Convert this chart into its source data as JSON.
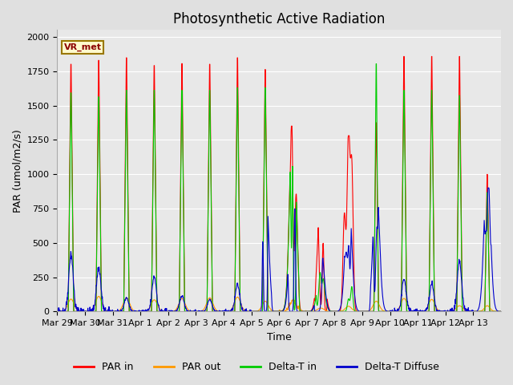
{
  "title": "Photosynthetic Active Radiation",
  "ylabel": "PAR (umol/m2/s)",
  "xlabel": "Time",
  "annotation": "VR_met",
  "legend": [
    "PAR in",
    "PAR out",
    "Delta-T in",
    "Delta-T Diffuse"
  ],
  "colors": [
    "#ff0000",
    "#ff9900",
    "#00cc00",
    "#0000cc"
  ],
  "ylim": [
    0,
    2050
  ],
  "background_color": "#e0e0e0",
  "plot_background": "#e8e8e8",
  "n_days": 16,
  "x_tick_labels": [
    "Mar 29",
    "Mar 30",
    "Mar 31",
    "Apr 1",
    "Apr 2",
    "Apr 3",
    "Apr 4",
    "Apr 5",
    "Apr 6",
    "Apr 7",
    "Apr 8",
    "Apr 9",
    "Apr 10",
    "Apr 11",
    "Apr 12",
    "Apr 13"
  ],
  "x_tick_positions": [
    0,
    1,
    2,
    3,
    4,
    5,
    6,
    7,
    8,
    9,
    10,
    11,
    12,
    13,
    14,
    15
  ],
  "title_fontsize": 12,
  "label_fontsize": 9,
  "tick_fontsize": 8,
  "grid_color": "#ffffff",
  "linewidth": 0.8
}
